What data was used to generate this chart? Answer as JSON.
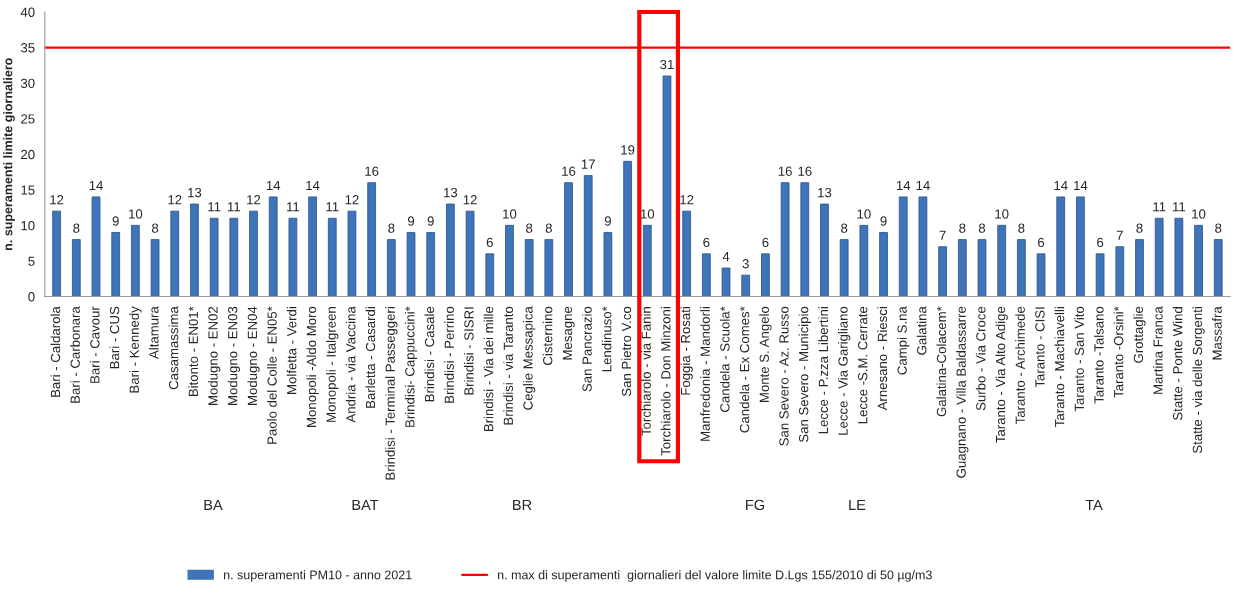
{
  "chart_data": {
    "type": "bar",
    "ylabel": "n. superamenti limite giornaliero",
    "categories": [
      "Bari - Caldarola",
      "Bari - Carbonara",
      "Bari - Cavour",
      "Bari - CUS",
      "Bari - Kennedy",
      "Altamura",
      "Casamassima",
      "Bitonto - EN01*",
      "Modugno - EN02",
      "Modugno - EN03",
      "Modugno - EN04",
      "Paolo del Colle - EN05*",
      "Molfetta - Verdi",
      "Monopoli -Aldo Moro",
      "Monopoli - Italgreen",
      "Andria - via Vaccina",
      "Barletta - Casardi",
      "Brindisi - Terminal Passeggeri",
      "Brindisi- Cappuccini*",
      "Brindisi - Casale",
      "Brindisi - Perrino",
      "Brindisi - SISRI",
      "Brindisi - Via dei mille",
      "Brindisi - via Taranto",
      "Ceglie Messapica",
      "Cisternino",
      "Mesagne",
      "San Pancrazio",
      "Lendinuso*",
      "San Pietro V.co",
      "Torchiarolo - via Fanin",
      "Torchiarolo - Don Minzoni",
      "Foggia - Rosati",
      "Manfredonia - Mandorli",
      "Candela - Scuola*",
      "Candela - Ex Comes*",
      "Monte S. Angelo",
      "San Severo - Az. Russo",
      "San Severo - Municipio",
      "Lecce - P.zza Libertini",
      "Lecce - Via Garigliano",
      "Lecce -S.M. Cerrate",
      "Arnesano - Riesci",
      "Campi S.na",
      "Galatina",
      "Galatina-Colacem*",
      "Guagnano - Villa Baldassarre",
      "Surbo - Via Croce",
      "Taranto - Via Alto Adige",
      "Taranto - Archimede",
      "Taranto - CISI",
      "Taranto - Machiavelli",
      "Taranto - San Vito",
      "Taranto -Talsano",
      "Taranto -Orsini*",
      "Grottaglie",
      "Martina Franca",
      "Statte - Ponte Wind",
      "Statte - via delle Sorgenti",
      "Massafra"
    ],
    "series": [
      {
        "name": "n. superamenti PM10 - anno 2021",
        "color": "#3f74b8",
        "values": [
          12,
          8,
          14,
          9,
          10,
          8,
          12,
          13,
          11,
          11,
          12,
          14,
          11,
          14,
          11,
          12,
          16,
          8,
          9,
          9,
          13,
          12,
          6,
          10,
          8,
          8,
          16,
          17,
          9,
          19,
          10,
          31,
          12,
          6,
          4,
          3,
          6,
          16,
          16,
          13,
          8,
          10,
          9,
          14,
          14,
          7,
          8,
          8,
          10,
          8,
          6,
          14,
          14,
          6,
          7,
          8,
          11,
          11,
          10,
          8
        ]
      }
    ],
    "data_labels": true,
    "ylim": [
      0,
      40
    ],
    "yticks": [
      0,
      5,
      10,
      15,
      20,
      25,
      30,
      35,
      40
    ],
    "ref_lines": [
      {
        "axis": "y",
        "value": 35,
        "label": "n. max di superamenti  giornalieri del valore limite D.Lgs 155/2010 di 50 µg/m3",
        "color": "#ff0000"
      }
    ],
    "annotations": [
      "BA",
      "BAT",
      "BR",
      "FG",
      "LE",
      "TA"
    ],
    "grid": false,
    "legend": "bottom"
  }
}
